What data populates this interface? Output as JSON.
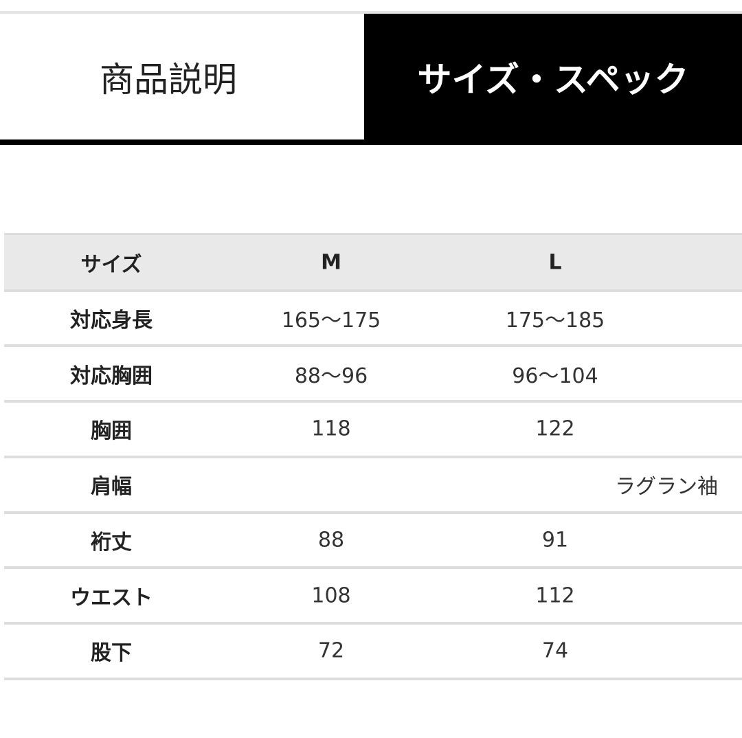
{
  "tabs": [
    "商品説明",
    "サイズ・スペック"
  ],
  "table": {
    "header": [
      "サイズ",
      "M",
      "L"
    ],
    "rows": [
      {
        "label": "対応身長",
        "values": [
          "165〜175",
          "175〜185"
        ]
      },
      {
        "label": "対応胸囲",
        "values": [
          "88〜96",
          "96〜104"
        ]
      },
      {
        "label": "胸囲",
        "values": [
          "118",
          "122"
        ]
      },
      {
        "label": "肩幅",
        "spanning": "ラグラン袖"
      },
      {
        "label": "裄丈",
        "values": [
          "88",
          "91"
        ]
      },
      {
        "label": "ウエスト",
        "values": [
          "108",
          "112"
        ]
      },
      {
        "label": "股下",
        "values": [
          "72",
          "74"
        ]
      }
    ]
  }
}
